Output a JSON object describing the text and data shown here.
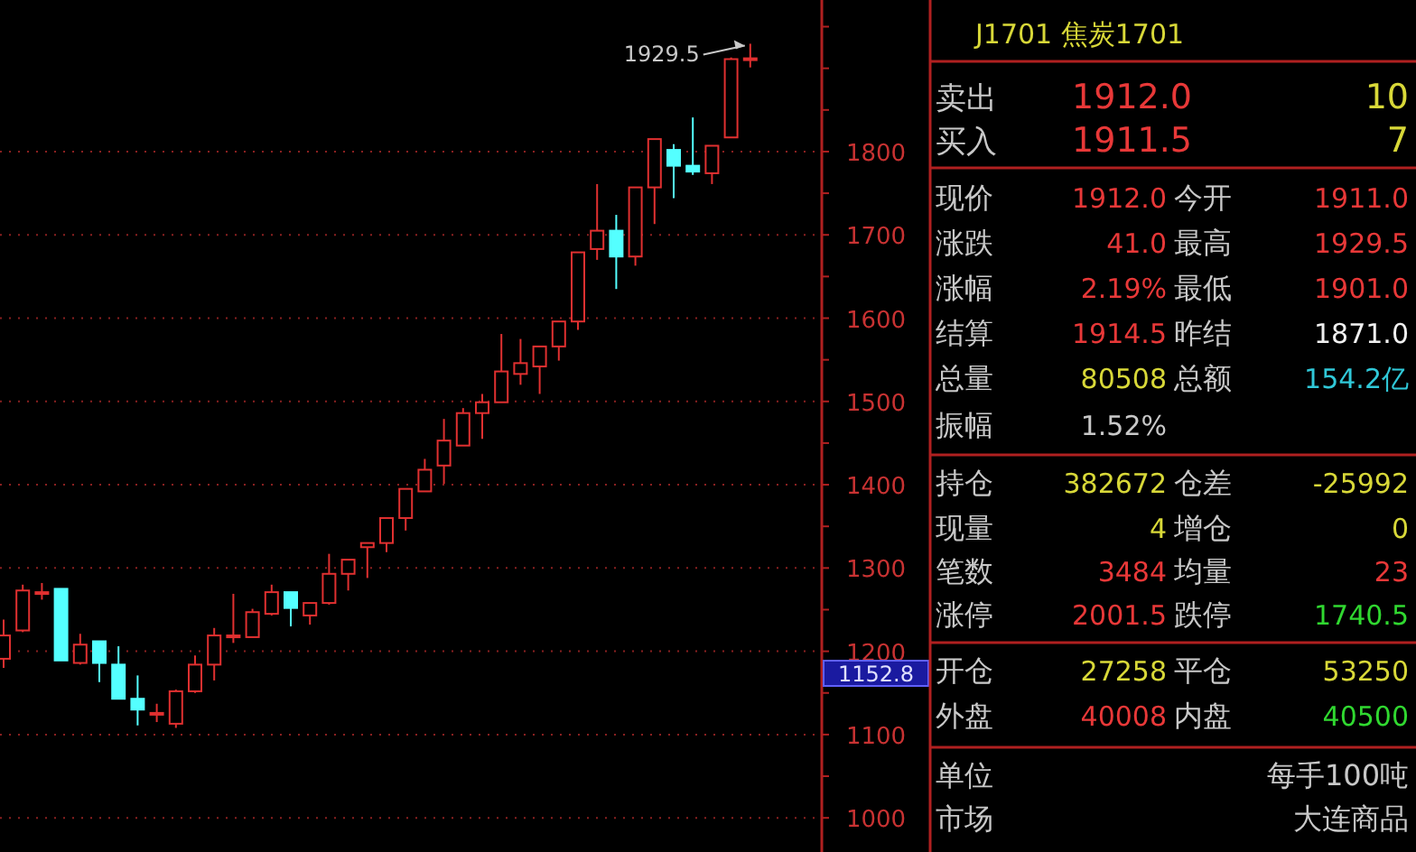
{
  "chart_data": {
    "type": "candlestick",
    "categories": [
      null,
      null,
      null,
      null,
      null,
      null,
      null,
      null,
      null,
      null,
      null,
      null,
      null,
      null,
      null,
      null,
      null,
      null,
      null,
      null,
      null,
      null,
      null,
      null,
      null,
      null,
      null,
      null,
      null,
      null,
      null,
      null,
      null,
      null,
      null,
      null,
      null,
      null,
      null,
      null
    ],
    "ohlc": [
      [
        1191,
        1238,
        1180,
        1219
      ],
      [
        1225,
        1280,
        1223,
        1273
      ],
      [
        1271,
        1282,
        1262,
        1271
      ],
      [
        1275,
        1275,
        1189,
        1189
      ],
      [
        1186,
        1221,
        1184,
        1208
      ],
      [
        1212,
        1212,
        1163,
        1186
      ],
      [
        1184,
        1206,
        1143,
        1143
      ],
      [
        1143,
        1171,
        1111,
        1130
      ],
      [
        1126,
        1137,
        1115,
        1126
      ],
      [
        1113,
        1154,
        1108,
        1152
      ],
      [
        1152,
        1195,
        1150,
        1184
      ],
      [
        1184,
        1228,
        1165,
        1219
      ],
      [
        1219,
        1269,
        1210,
        1219
      ],
      [
        1217,
        1251,
        1217,
        1247
      ],
      [
        1245,
        1280,
        1243,
        1271
      ],
      [
        1271,
        1271,
        1230,
        1252
      ],
      [
        1243,
        1258,
        1232,
        1258
      ],
      [
        1258,
        1317,
        1256,
        1293
      ],
      [
        1293,
        1310,
        1273,
        1310
      ],
      [
        1325,
        1330,
        1288,
        1330
      ],
      [
        1330,
        1360,
        1319,
        1360
      ],
      [
        1360,
        1395,
        1345,
        1395
      ],
      [
        1392,
        1431,
        1392,
        1418
      ],
      [
        1423,
        1479,
        1401,
        1453
      ],
      [
        1447,
        1492,
        1447,
        1486
      ],
      [
        1486,
        1509,
        1455,
        1499
      ],
      [
        1499,
        1581,
        1499,
        1536
      ],
      [
        1533,
        1575,
        1520,
        1546
      ],
      [
        1542,
        1566,
        1509,
        1566
      ],
      [
        1566,
        1596,
        1549,
        1596
      ],
      [
        1596,
        1679,
        1586,
        1679
      ],
      [
        1683,
        1761,
        1670,
        1705
      ],
      [
        1705,
        1724,
        1635,
        1674
      ],
      [
        1674,
        1757,
        1663,
        1757
      ],
      [
        1757,
        1815,
        1713,
        1815
      ],
      [
        1802,
        1809,
        1744,
        1783
      ],
      [
        1783,
        1841,
        1772,
        1776
      ],
      [
        1774,
        1807,
        1761,
        1807
      ],
      [
        1817,
        1913,
        1817,
        1911
      ],
      [
        1911,
        1929.5,
        1901,
        1912
      ]
    ],
    "ylim": [
      959,
      1982
    ],
    "yticks": [
      1000,
      1100,
      1200,
      1300,
      1400,
      1500,
      1600,
      1700,
      1800
    ],
    "grid": "y",
    "annotations": [
      "1929.5",
      "1152.8",
      "J1701 焦炭1701",
      "卖出",
      "1912.0",
      "10",
      "买入",
      "1911.5",
      "7",
      "现价",
      "1912.0",
      "今开",
      "1911.0",
      "涨跌",
      "41.0",
      "最高",
      "1929.5",
      "涨幅",
      "2.19%",
      "最低",
      "1901.0",
      "结算",
      "1914.5",
      "昨结",
      "1871.0",
      "总量",
      "80508",
      "总额",
      "154.2亿",
      "振幅",
      "1.52%",
      "持仓",
      "382672",
      "仓差",
      "-25992",
      "现量",
      "4",
      "增仓",
      "0",
      "笔数",
      "3484",
      "均量",
      "23",
      "涨停",
      "2001.5",
      "跌停",
      "1740.5",
      "开仓",
      "27258",
      "平仓",
      "53250",
      "外盘",
      "40008",
      "内盘",
      "40500",
      "单位",
      "每手100吨",
      "市场",
      "大连商品"
    ]
  }
}
